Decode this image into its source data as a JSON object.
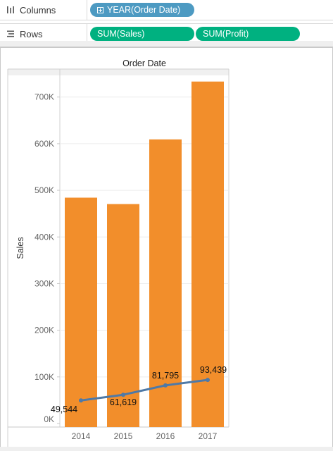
{
  "shelves": {
    "columns": {
      "label": "Columns",
      "icon": "columns-icon",
      "pills": [
        {
          "text": "YEAR(Order Date)",
          "color": "#4d9ac2",
          "expand_icon": "expand-plus-icon"
        }
      ]
    },
    "rows": {
      "label": "Rows",
      "icon": "rows-icon",
      "pills": [
        {
          "text": "SUM(Sales)",
          "color": "#00b180"
        },
        {
          "text": "SUM(Profit)",
          "color": "#00b180"
        }
      ]
    }
  },
  "chart_data": {
    "type": "bar",
    "title": "Order Date",
    "xlabel": "",
    "ylabel": "Sales",
    "categories": [
      "2014",
      "2015",
      "2016",
      "2017"
    ],
    "ylim": [
      0,
      760000
    ],
    "yticks": [
      0,
      100000,
      200000,
      300000,
      400000,
      500000,
      600000,
      700000
    ],
    "ytick_labels": [
      "0K",
      "100K",
      "200K",
      "300K",
      "400K",
      "500K",
      "600K",
      "700K"
    ],
    "grid": true,
    "series": [
      {
        "name": "SUM(Sales)",
        "mark": "bar",
        "color": "#f28e2b",
        "values": [
          484247,
          470533,
          609206,
          733215
        ]
      },
      {
        "name": "SUM(Profit)",
        "mark": "line",
        "color": "#4e79a7",
        "values": [
          49544,
          61619,
          81795,
          93439
        ],
        "labels": [
          "49,544",
          "61,619",
          "81,795",
          "93,439"
        ]
      }
    ]
  }
}
